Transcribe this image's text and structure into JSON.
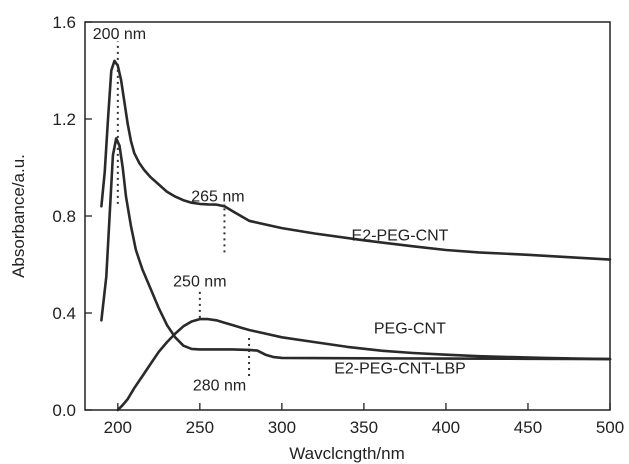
{
  "chart_data": {
    "type": "line",
    "title": "",
    "xlabel": "Wavclcngth/nm",
    "ylabel": "Absorbance/a.u.",
    "xlim": [
      180,
      500
    ],
    "ylim": [
      0,
      1.6
    ],
    "xticks": [
      200,
      250,
      300,
      350,
      400,
      450,
      500
    ],
    "yticks": [
      0.0,
      0.4,
      0.8,
      1.2,
      1.6
    ],
    "ytick_labels": [
      "0.0",
      "0.4",
      "0.8",
      "1.2",
      "1.6"
    ],
    "grid": false,
    "series": [
      {
        "name": "E2-PEG-CNT",
        "x": [
          190,
          192,
          194,
          196,
          198,
          200,
          202,
          204,
          206,
          208,
          210,
          213,
          216,
          220,
          225,
          230,
          235,
          240,
          245,
          250,
          255,
          260,
          265,
          270,
          275,
          280,
          290,
          300,
          320,
          350,
          380,
          400,
          420,
          450,
          480,
          500
        ],
        "y": [
          0.84,
          0.98,
          1.2,
          1.4,
          1.44,
          1.42,
          1.36,
          1.27,
          1.18,
          1.11,
          1.06,
          1.02,
          0.99,
          0.96,
          0.93,
          0.9,
          0.88,
          0.865,
          0.855,
          0.85,
          0.848,
          0.847,
          0.84,
          0.82,
          0.8,
          0.78,
          0.765,
          0.75,
          0.728,
          0.7,
          0.675,
          0.66,
          0.65,
          0.64,
          0.628,
          0.62
        ]
      },
      {
        "name": "PEG-CNT",
        "x": [
          200,
          203,
          206,
          210,
          215,
          220,
          225,
          230,
          235,
          240,
          245,
          250,
          255,
          260,
          265,
          270,
          275,
          280,
          290,
          300,
          320,
          340,
          360,
          380,
          400,
          420,
          440,
          460,
          480,
          500
        ],
        "y": [
          0.0,
          0.02,
          0.045,
          0.09,
          0.14,
          0.19,
          0.24,
          0.28,
          0.315,
          0.345,
          0.365,
          0.375,
          0.375,
          0.37,
          0.36,
          0.35,
          0.34,
          0.33,
          0.315,
          0.3,
          0.28,
          0.26,
          0.245,
          0.235,
          0.228,
          0.222,
          0.218,
          0.215,
          0.212,
          0.21
        ]
      },
      {
        "name": "E2-PEG-CNT-LBP",
        "x": [
          190,
          193,
          195,
          197,
          199,
          201,
          203,
          205,
          208,
          211,
          215,
          220,
          225,
          230,
          235,
          240,
          245,
          250,
          255,
          260,
          270,
          280,
          285,
          290,
          295,
          300,
          350,
          400,
          450,
          500
        ],
        "y": [
          0.37,
          0.55,
          0.8,
          1.05,
          1.12,
          1.09,
          1.0,
          0.88,
          0.76,
          0.66,
          0.58,
          0.5,
          0.42,
          0.35,
          0.3,
          0.265,
          0.252,
          0.25,
          0.25,
          0.25,
          0.25,
          0.248,
          0.245,
          0.228,
          0.218,
          0.215,
          0.213,
          0.212,
          0.211,
          0.21
        ]
      }
    ],
    "series_labels": [
      {
        "text": "E2-PEG-CNT",
        "x": 372,
        "y": 0.7
      },
      {
        "text": "PEG-CNT",
        "x": 378,
        "y": 0.315
      },
      {
        "text": "E2-PEG-CNT-LBP",
        "x": 372,
        "y": 0.15
      }
    ],
    "annotations": [
      {
        "text": "200 nm",
        "x": 200,
        "line_y": [
          0.85,
          1.52
        ],
        "label_x": 201,
        "label_y": 1.53
      },
      {
        "text": "265 nm",
        "x": 265,
        "line_y": [
          0.65,
          0.85
        ],
        "label_x": 261,
        "label_y": 0.86
      },
      {
        "text": "250 nm",
        "x": 250,
        "line_y": [
          0.38,
          0.5
        ],
        "label_x": 250,
        "label_y": 0.51
      },
      {
        "text": "280 nm",
        "x": 280,
        "line_y": [
          0.14,
          0.3
        ],
        "label_x": 262,
        "label_y": 0.08
      }
    ]
  }
}
